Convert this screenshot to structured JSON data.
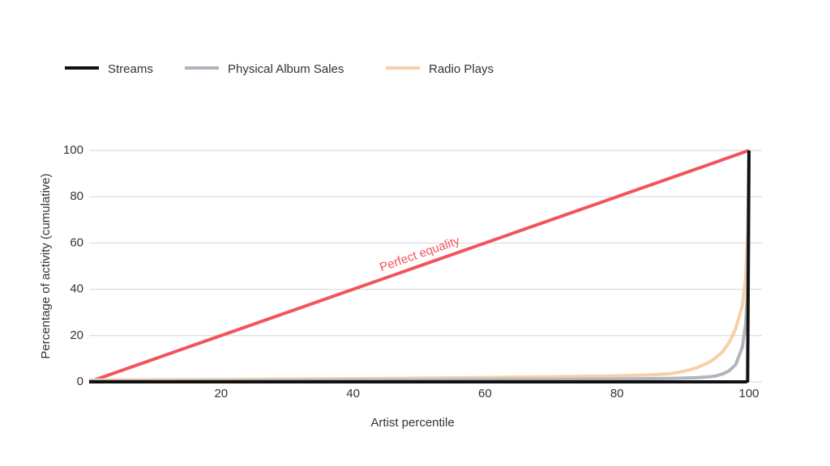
{
  "chart_data": {
    "type": "line",
    "x_label": "Artist percentile",
    "y_label": "Percentage of activity (cumulative)",
    "x": [
      0,
      10,
      20,
      30,
      40,
      50,
      60,
      70,
      80,
      85,
      88,
      90,
      92,
      94,
      95,
      96,
      97,
      98,
      99,
      99.5,
      99.8,
      100
    ],
    "series": [
      {
        "name": "Streams",
        "color": "#111111",
        "values": [
          0,
          0,
          0,
          0,
          0,
          0,
          0,
          0,
          0,
          0,
          0,
          0,
          0,
          0,
          0,
          0,
          0,
          0,
          0,
          0,
          0.3,
          100
        ]
      },
      {
        "name": "Physical Album Sales",
        "color": "#b0b5bd",
        "values": [
          0.3,
          0.4,
          0.5,
          0.6,
          0.7,
          0.8,
          0.9,
          1,
          1.2,
          1.4,
          1.5,
          1.6,
          1.8,
          2.2,
          2.6,
          3.4,
          4.8,
          7.5,
          15,
          25,
          40,
          100
        ]
      },
      {
        "name": "Radio Plays",
        "color": "#f7cfa8",
        "values": [
          0.8,
          0.9,
          1,
          1.2,
          1.4,
          1.6,
          1.9,
          2.2,
          2.6,
          3,
          3.5,
          4.5,
          6,
          8.5,
          10.5,
          13,
          17,
          23,
          33,
          45,
          65,
          100
        ]
      }
    ],
    "reference_line": {
      "label": "Perfect equality",
      "color": "#f2545b",
      "x": [
        0,
        100
      ],
      "y": [
        0,
        100
      ]
    },
    "xlim": [
      0,
      100
    ],
    "ylim": [
      0,
      100
    ],
    "xticks": [
      20,
      40,
      60,
      80,
      100
    ],
    "yticks": [
      0,
      20,
      40,
      60,
      80,
      100
    ],
    "grid": true,
    "legend": "top-left"
  }
}
